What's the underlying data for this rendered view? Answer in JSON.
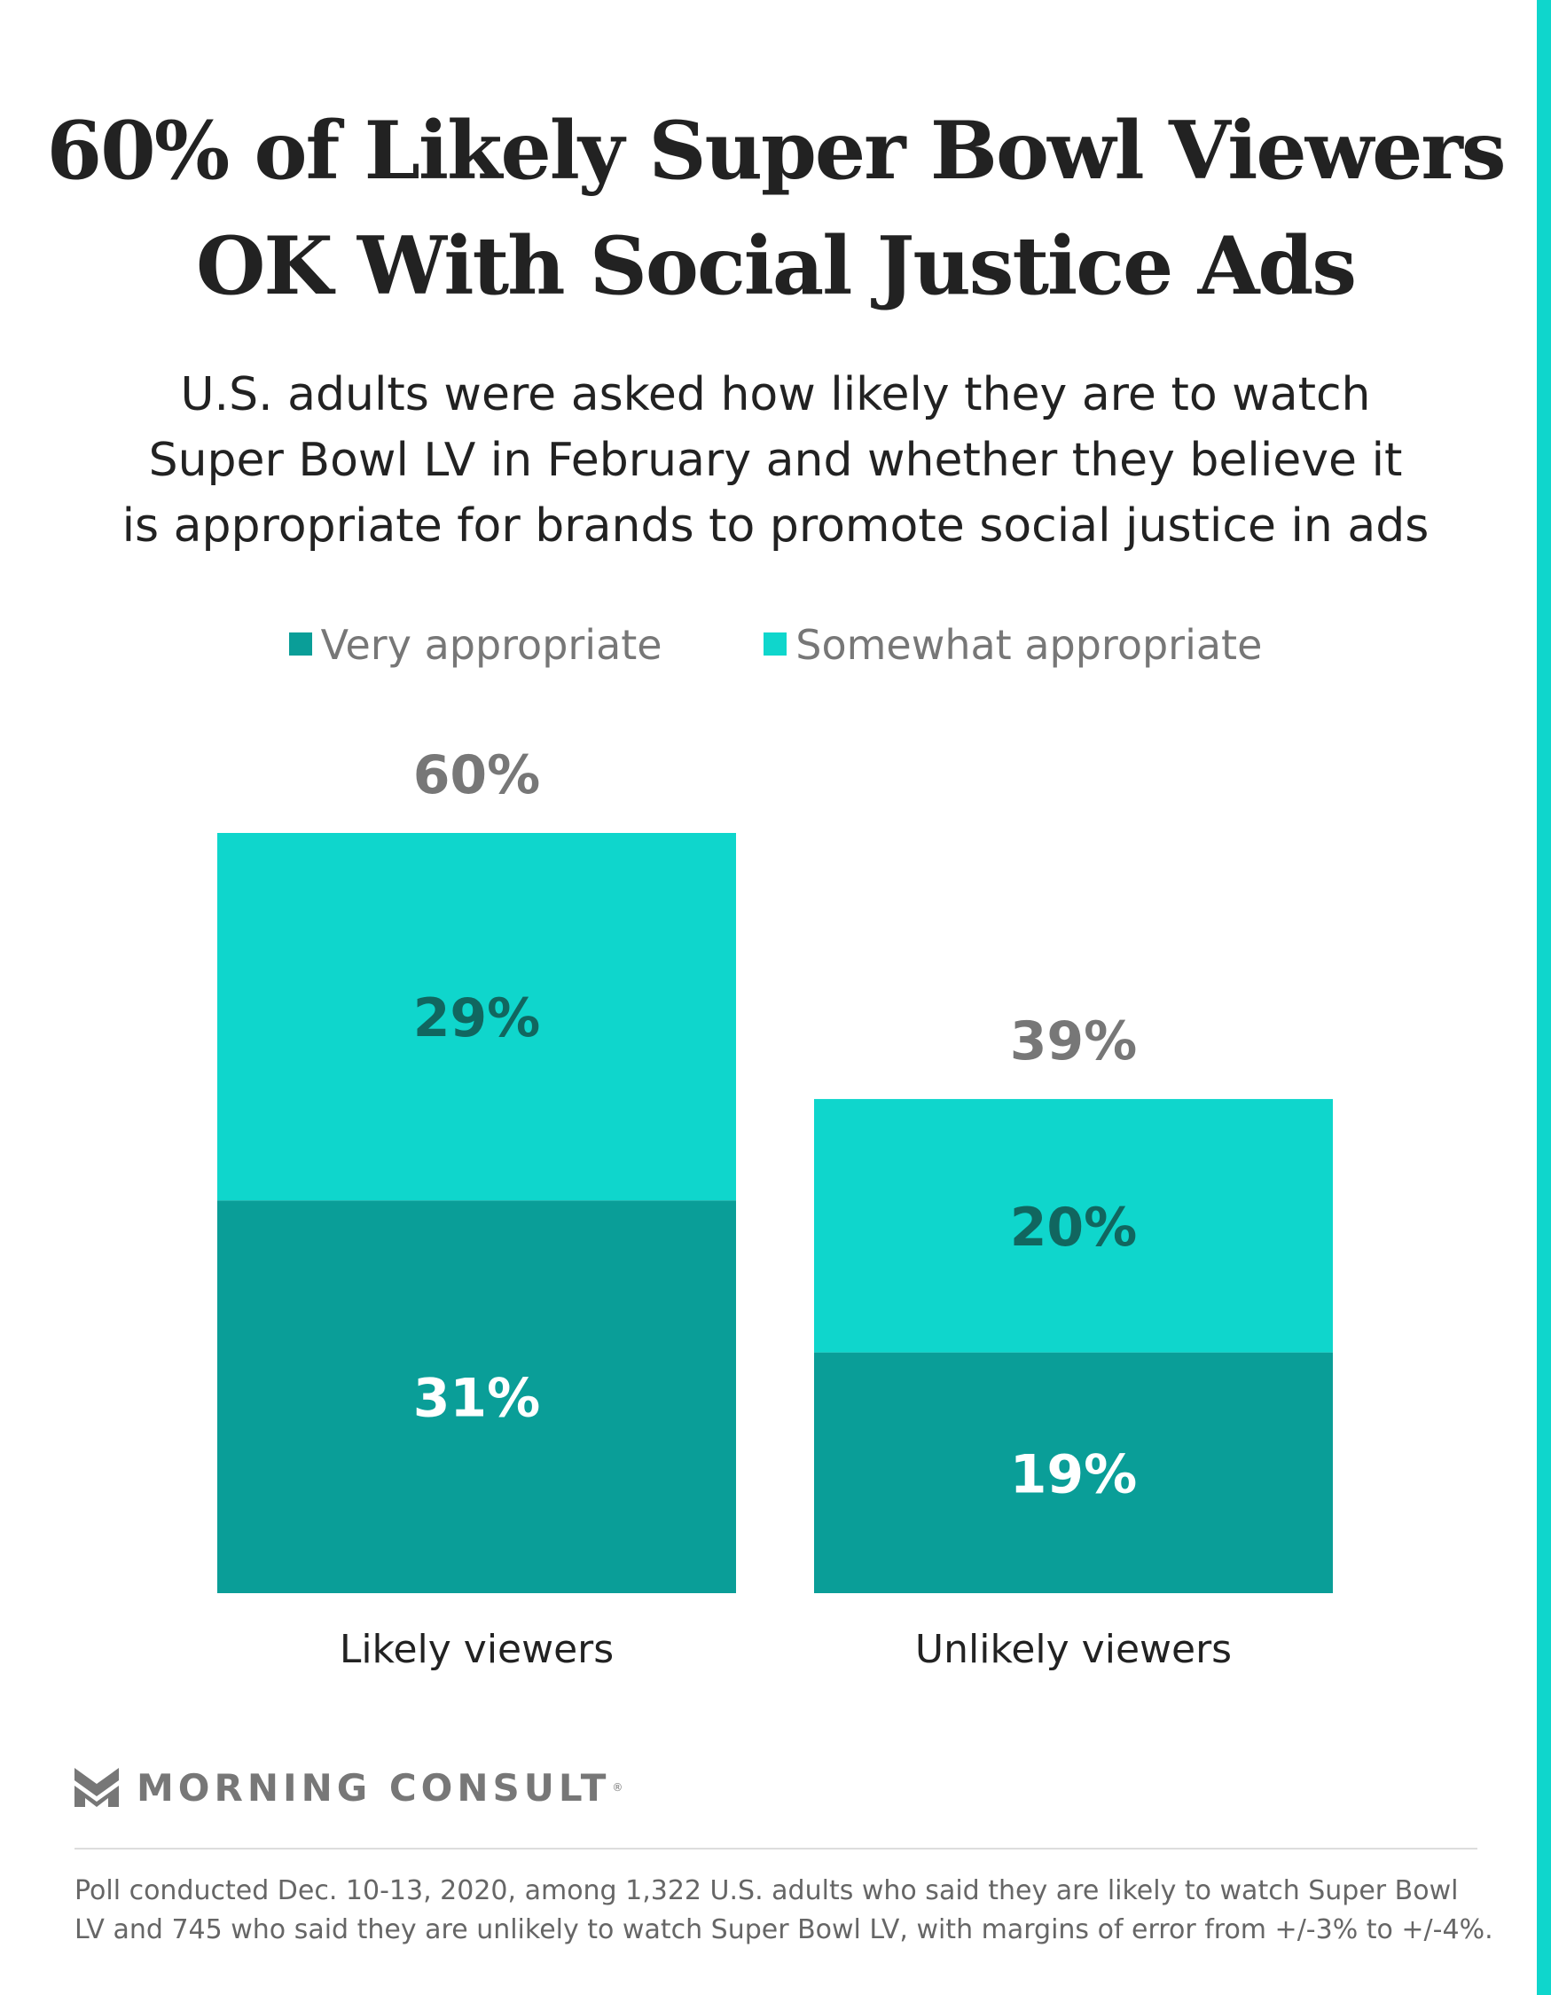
{
  "title_lines": [
    "60% of Likely Super Bowl Viewers",
    "OK With Social Justice Ads"
  ],
  "subtitle_lines": [
    "U.S. adults were asked how likely they are to watch",
    "Super Bowl LV in February and whether they believe it",
    "is appropriate for brands to promote social justice in ads"
  ],
  "colors": {
    "very": "#0a9e98",
    "somewhat": "#0fd6cc",
    "stripe": "#0fd6cc",
    "total_label": "#777777",
    "somewhat_label": "#11665f",
    "very_label": "#ffffff",
    "category_label": "#222222"
  },
  "chart_data": {
    "type": "bar",
    "stacked": true,
    "categories": [
      "Likely viewers",
      "Unlikely viewers"
    ],
    "series": [
      {
        "name": "Very appropriate",
        "values": [
          31,
          19
        ],
        "labels": [
          "31%",
          "19%"
        ]
      },
      {
        "name": "Somewhat appropriate",
        "values": [
          29,
          20
        ],
        "labels": [
          "29%",
          "20%"
        ]
      }
    ],
    "totals": [
      60,
      39
    ],
    "total_labels": [
      "60%",
      "39%"
    ],
    "legend_position": "top-center",
    "grid": false,
    "ylim": [
      0,
      60
    ]
  },
  "brand": {
    "name": "MORNING CONSULT",
    "registered": "®"
  },
  "footnote_lines": [
    "Poll conducted Dec. 10-13, 2020, among 1,322 U.S. adults who said they are likely to watch Super Bowl",
    "LV and 745 who said they are unlikely to watch Super Bowl LV, with margins of error from +/-3% to +/-4%."
  ]
}
